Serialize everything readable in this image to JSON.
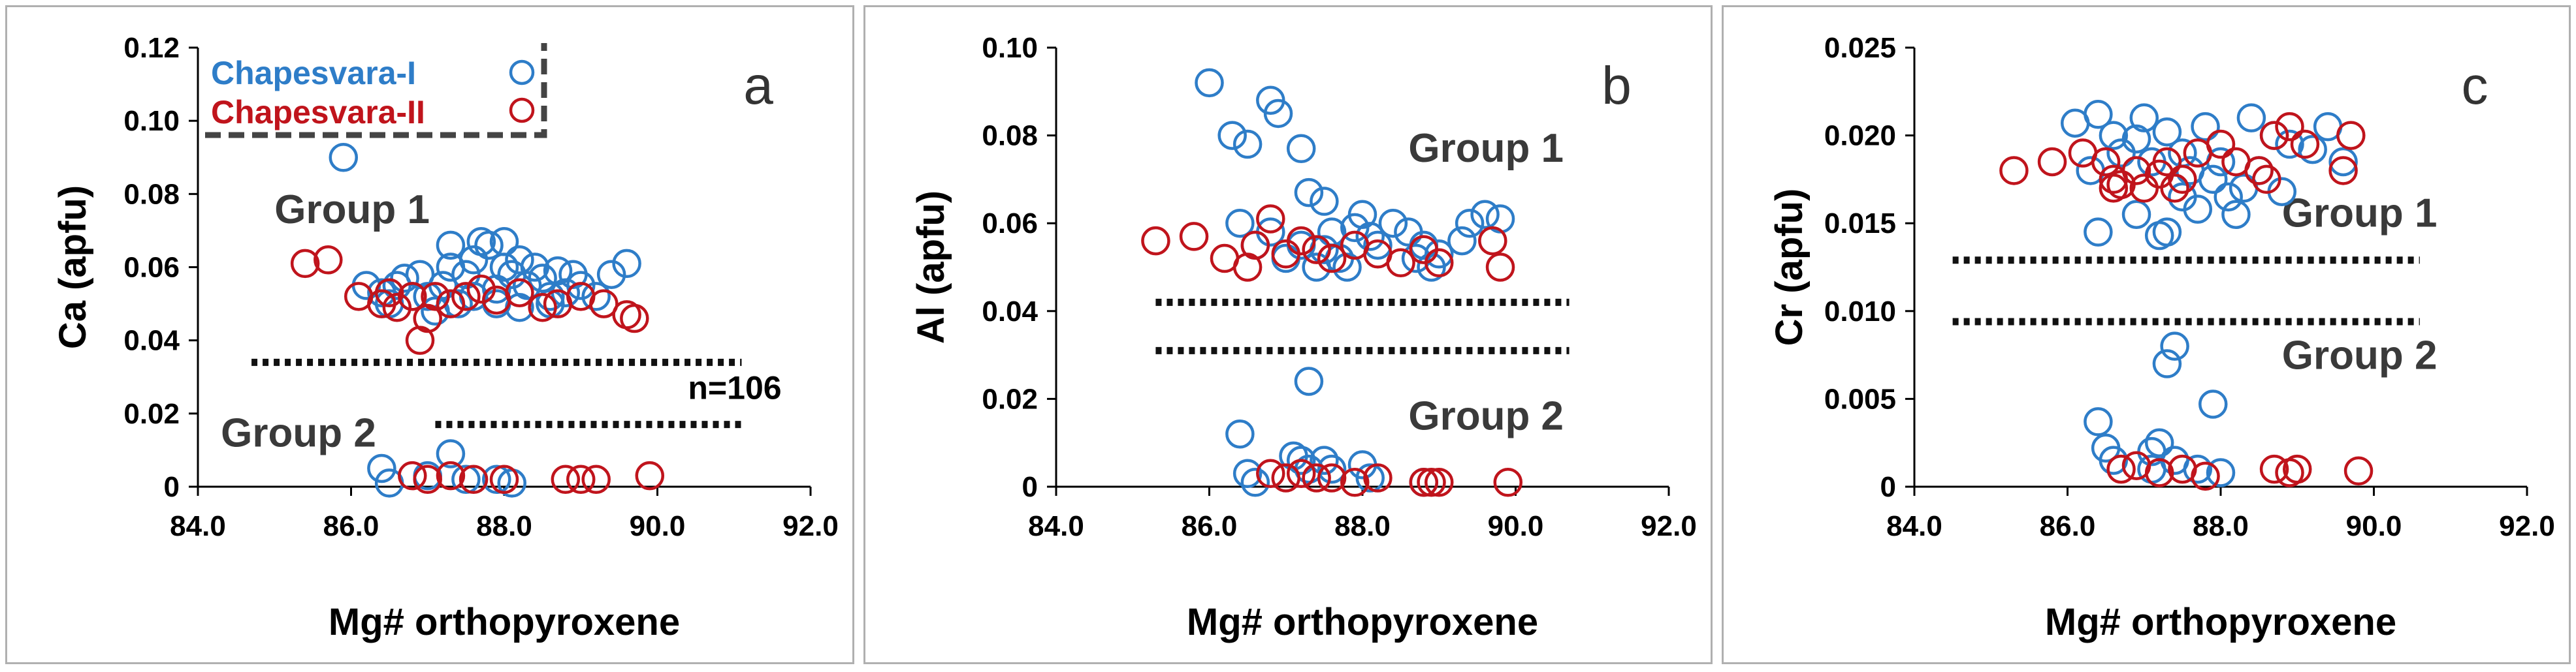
{
  "colors": {
    "series1": "#2e7dc8",
    "series2": "#c0141c",
    "dotted": "#111111",
    "legend_border": "#444444"
  },
  "legend": {
    "s1": "Chapesvara-I",
    "s2": "Chapesvara-II"
  },
  "chart_data": [
    {
      "type": "scatter",
      "panel_label": "a",
      "xlabel": "Mg# orthopyroxene",
      "ylabel": "Ca (apfu)",
      "xlim": [
        84,
        92
      ],
      "ylim": [
        0,
        0.12
      ],
      "xticks": [
        "84.0",
        "86.0",
        "88.0",
        "90.0",
        "92.0"
      ],
      "yticks": [
        "0",
        "0.02",
        "0.04",
        "0.06",
        "0.08",
        "0.10",
        "0.12"
      ],
      "group_labels": [
        {
          "text": "Group 1",
          "x": 85.0,
          "y": 0.072
        },
        {
          "text": "Group 2",
          "x": 84.3,
          "y": 0.011
        }
      ],
      "dotted_lines": [
        {
          "x1": 84.7,
          "x2": 91.1,
          "y": 0.034
        },
        {
          "x1": 87.1,
          "x2": 91.1,
          "y": 0.017
        }
      ],
      "annotation": {
        "text": "n=106",
        "x": 90.4,
        "y": 0.024
      },
      "legend_box": true,
      "series": [
        {
          "name": "Chapesvara-I",
          "points": [
            [
              85.9,
              0.09
            ],
            [
              86.2,
              0.055
            ],
            [
              86.4,
              0.053
            ],
            [
              86.5,
              0.05
            ],
            [
              86.6,
              0.055
            ],
            [
              86.7,
              0.057
            ],
            [
              86.8,
              0.052
            ],
            [
              86.9,
              0.058
            ],
            [
              87.0,
              0.052
            ],
            [
              87.1,
              0.048
            ],
            [
              87.2,
              0.055
            ],
            [
              87.3,
              0.06
            ],
            [
              87.3,
              0.066
            ],
            [
              87.4,
              0.05
            ],
            [
              87.5,
              0.058
            ],
            [
              87.6,
              0.062
            ],
            [
              87.7,
              0.067
            ],
            [
              87.8,
              0.066
            ],
            [
              87.9,
              0.054
            ],
            [
              88.0,
              0.06
            ],
            [
              88.0,
              0.067
            ],
            [
              88.1,
              0.058
            ],
            [
              88.2,
              0.062
            ],
            [
              88.3,
              0.055
            ],
            [
              88.4,
              0.06
            ],
            [
              88.5,
              0.057
            ],
            [
              88.6,
              0.052
            ],
            [
              88.7,
              0.059
            ],
            [
              88.8,
              0.053
            ],
            [
              88.9,
              0.058
            ],
            [
              89.0,
              0.055
            ],
            [
              89.2,
              0.052
            ],
            [
              89.4,
              0.058
            ],
            [
              89.6,
              0.061
            ],
            [
              87.9,
              0.05
            ],
            [
              88.2,
              0.049
            ],
            [
              88.6,
              0.05
            ],
            [
              87.6,
              0.052
            ],
            [
              86.4,
              0.005
            ],
            [
              86.5,
              0.001
            ],
            [
              87.0,
              0.003
            ],
            [
              87.3,
              0.009
            ],
            [
              87.5,
              0.002
            ],
            [
              87.9,
              0.002
            ],
            [
              88.1,
              0.001
            ]
          ]
        },
        {
          "name": "Chapesvara-II",
          "points": [
            [
              85.4,
              0.061
            ],
            [
              85.7,
              0.062
            ],
            [
              86.1,
              0.052
            ],
            [
              86.4,
              0.05
            ],
            [
              86.5,
              0.053
            ],
            [
              86.6,
              0.049
            ],
            [
              86.8,
              0.052
            ],
            [
              86.9,
              0.04
            ],
            [
              87.0,
              0.046
            ],
            [
              87.1,
              0.052
            ],
            [
              87.3,
              0.05
            ],
            [
              87.5,
              0.052
            ],
            [
              87.7,
              0.054
            ],
            [
              87.9,
              0.051
            ],
            [
              88.2,
              0.053
            ],
            [
              88.5,
              0.049
            ],
            [
              88.7,
              0.05
            ],
            [
              89.0,
              0.052
            ],
            [
              89.3,
              0.05
            ],
            [
              89.6,
              0.047
            ],
            [
              89.7,
              0.046
            ],
            [
              86.8,
              0.003
            ],
            [
              87.0,
              0.002
            ],
            [
              87.3,
              0.003
            ],
            [
              87.6,
              0.002
            ],
            [
              88.0,
              0.002
            ],
            [
              88.8,
              0.002
            ],
            [
              89.0,
              0.002
            ],
            [
              89.2,
              0.002
            ],
            [
              89.9,
              0.003
            ]
          ]
        }
      ]
    },
    {
      "type": "scatter",
      "panel_label": "b",
      "xlabel": "Mg# orthopyroxene",
      "ylabel": "Al (apfu)",
      "xlim": [
        84,
        92
      ],
      "ylim": [
        0,
        0.1
      ],
      "xticks": [
        "84.0",
        "86.0",
        "88.0",
        "90.0",
        "92.0"
      ],
      "yticks": [
        "0",
        "0.02",
        "0.04",
        "0.06",
        "0.08",
        "0.10"
      ],
      "group_labels": [
        {
          "text": "Group 1",
          "x": 88.6,
          "y": 0.074
        },
        {
          "text": "Group 2",
          "x": 88.6,
          "y": 0.013
        }
      ],
      "dotted_lines": [
        {
          "x1": 85.3,
          "x2": 90.7,
          "y": 0.042
        },
        {
          "x1": 85.3,
          "x2": 90.7,
          "y": 0.031
        }
      ],
      "series": [
        {
          "name": "Chapesvara-I",
          "points": [
            [
              86.0,
              0.092
            ],
            [
              86.3,
              0.08
            ],
            [
              86.5,
              0.078
            ],
            [
              86.8,
              0.088
            ],
            [
              86.9,
              0.085
            ],
            [
              87.2,
              0.077
            ],
            [
              87.3,
              0.067
            ],
            [
              87.5,
              0.065
            ],
            [
              86.4,
              0.06
            ],
            [
              86.6,
              0.055
            ],
            [
              86.8,
              0.058
            ],
            [
              87.0,
              0.052
            ],
            [
              87.2,
              0.055
            ],
            [
              87.4,
              0.05
            ],
            [
              87.5,
              0.054
            ],
            [
              87.6,
              0.058
            ],
            [
              87.7,
              0.052
            ],
            [
              87.8,
              0.05
            ],
            [
              87.9,
              0.059
            ],
            [
              88.0,
              0.062
            ],
            [
              88.1,
              0.057
            ],
            [
              88.2,
              0.055
            ],
            [
              88.4,
              0.06
            ],
            [
              88.6,
              0.058
            ],
            [
              88.7,
              0.052
            ],
            [
              88.8,
              0.055
            ],
            [
              88.9,
              0.05
            ],
            [
              89.0,
              0.053
            ],
            [
              89.3,
              0.056
            ],
            [
              89.4,
              0.06
            ],
            [
              89.6,
              0.062
            ],
            [
              89.8,
              0.061
            ],
            [
              87.3,
              0.024
            ],
            [
              86.4,
              0.012
            ],
            [
              86.5,
              0.003
            ],
            [
              86.6,
              0.001
            ],
            [
              87.1,
              0.007
            ],
            [
              87.2,
              0.006
            ],
            [
              87.3,
              0.004
            ],
            [
              87.5,
              0.006
            ],
            [
              87.6,
              0.004
            ],
            [
              88.0,
              0.005
            ],
            [
              88.1,
              0.002
            ],
            [
              88.8,
              0.001
            ]
          ]
        },
        {
          "name": "Chapesvara-II",
          "points": [
            [
              85.3,
              0.056
            ],
            [
              85.8,
              0.057
            ],
            [
              86.2,
              0.052
            ],
            [
              86.5,
              0.05
            ],
            [
              86.6,
              0.055
            ],
            [
              86.8,
              0.061
            ],
            [
              87.0,
              0.053
            ],
            [
              87.2,
              0.056
            ],
            [
              87.4,
              0.054
            ],
            [
              87.6,
              0.052
            ],
            [
              87.9,
              0.055
            ],
            [
              88.2,
              0.053
            ],
            [
              88.5,
              0.051
            ],
            [
              88.8,
              0.054
            ],
            [
              89.0,
              0.051
            ],
            [
              89.7,
              0.056
            ],
            [
              89.8,
              0.05
            ],
            [
              86.8,
              0.003
            ],
            [
              87.0,
              0.002
            ],
            [
              87.2,
              0.003
            ],
            [
              87.4,
              0.002
            ],
            [
              87.6,
              0.002
            ],
            [
              87.9,
              0.001
            ],
            [
              88.2,
              0.002
            ],
            [
              88.8,
              0.001
            ],
            [
              88.9,
              0.001
            ],
            [
              89.0,
              0.001
            ],
            [
              89.9,
              0.001
            ]
          ]
        }
      ]
    },
    {
      "type": "scatter",
      "panel_label": "c",
      "xlabel": "Mg# orthopyroxene",
      "ylabel": "Cr (apfu)",
      "xlim": [
        84,
        92
      ],
      "ylim": [
        0,
        0.025
      ],
      "xticks": [
        "84.0",
        "86.0",
        "88.0",
        "90.0",
        "92.0"
      ],
      "yticks": [
        "0",
        "0.005",
        "0.010",
        "0.015",
        "0.020",
        "0.025"
      ],
      "group_labels": [
        {
          "text": "Group 1",
          "x": 88.8,
          "y": 0.0148
        },
        {
          "text": "Group 2",
          "x": 88.8,
          "y": 0.0067
        }
      ],
      "dotted_lines": [
        {
          "x1": 84.5,
          "x2": 90.6,
          "y": 0.0129
        },
        {
          "x1": 84.5,
          "x2": 90.6,
          "y": 0.0094
        }
      ],
      "series": [
        {
          "name": "Chapesvara-I",
          "points": [
            [
              86.1,
              0.0207
            ],
            [
              86.4,
              0.0212
            ],
            [
              86.6,
              0.02
            ],
            [
              86.7,
              0.019
            ],
            [
              86.9,
              0.0198
            ],
            [
              87.0,
              0.021
            ],
            [
              87.1,
              0.0185
            ],
            [
              87.3,
              0.0202
            ],
            [
              87.5,
              0.019
            ],
            [
              87.6,
              0.018
            ],
            [
              87.8,
              0.0205
            ],
            [
              87.9,
              0.0175
            ],
            [
              88.0,
              0.0185
            ],
            [
              88.1,
              0.0165
            ],
            [
              88.2,
              0.0155
            ],
            [
              88.4,
              0.021
            ],
            [
              88.5,
              0.018
            ],
            [
              88.7,
              0.02
            ],
            [
              88.9,
              0.0195
            ],
            [
              89.2,
              0.0192
            ],
            [
              89.4,
              0.0205
            ],
            [
              89.6,
              0.0185
            ],
            [
              86.4,
              0.0145
            ],
            [
              86.9,
              0.0155
            ],
            [
              87.2,
              0.0143
            ],
            [
              87.5,
              0.0165
            ],
            [
              87.7,
              0.0158
            ],
            [
              88.3,
              0.017
            ],
            [
              88.8,
              0.0168
            ],
            [
              86.3,
              0.018
            ],
            [
              87.3,
              0.0145
            ],
            [
              87.4,
              0.008
            ],
            [
              87.3,
              0.007
            ],
            [
              87.9,
              0.0047
            ],
            [
              86.4,
              0.0037
            ],
            [
              86.5,
              0.0022
            ],
            [
              86.6,
              0.0015
            ],
            [
              87.1,
              0.002
            ],
            [
              87.2,
              0.0025
            ],
            [
              87.4,
              0.0015
            ],
            [
              87.7,
              0.001
            ],
            [
              88.0,
              0.0008
            ],
            [
              87.1,
              0.001
            ]
          ]
        },
        {
          "name": "Chapesvara-II",
          "points": [
            [
              85.3,
              0.018
            ],
            [
              85.8,
              0.0185
            ],
            [
              86.2,
              0.019
            ],
            [
              86.5,
              0.0185
            ],
            [
              86.6,
              0.0175
            ],
            [
              86.7,
              0.0172
            ],
            [
              86.9,
              0.018
            ],
            [
              87.0,
              0.017
            ],
            [
              87.2,
              0.0178
            ],
            [
              87.3,
              0.0185
            ],
            [
              87.5,
              0.0175
            ],
            [
              87.7,
              0.019
            ],
            [
              88.0,
              0.0195
            ],
            [
              88.2,
              0.0185
            ],
            [
              88.5,
              0.018
            ],
            [
              88.7,
              0.02
            ],
            [
              88.9,
              0.0205
            ],
            [
              89.1,
              0.0195
            ],
            [
              89.7,
              0.02
            ],
            [
              89.6,
              0.018
            ],
            [
              86.6,
              0.017
            ],
            [
              87.4,
              0.017
            ],
            [
              88.6,
              0.0175
            ],
            [
              86.7,
              0.001
            ],
            [
              86.9,
              0.0012
            ],
            [
              87.2,
              0.0008
            ],
            [
              87.5,
              0.001
            ],
            [
              87.8,
              0.0006
            ],
            [
              88.7,
              0.001
            ],
            [
              88.9,
              0.0008
            ],
            [
              89.0,
              0.001
            ],
            [
              89.8,
              0.0009
            ]
          ]
        }
      ]
    }
  ]
}
